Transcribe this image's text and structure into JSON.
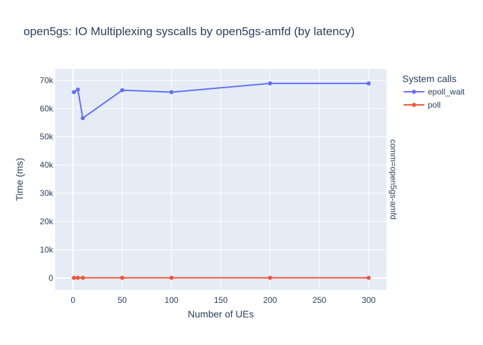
{
  "chart_data": {
    "type": "line",
    "title": "open5gs: IO Multiplexing syscalls by open5gs-amfd (by latency)",
    "xlabel": "Number of UEs",
    "ylabel": "Time (ms)",
    "legend_title": "System calls",
    "legend_position": "right",
    "facet_label": "comm=open5gs-amfd",
    "grid": true,
    "xlim": [
      -18,
      318
    ],
    "ylim": [
      -4200,
      74000
    ],
    "x_ticks": [
      0,
      50,
      100,
      150,
      200,
      250,
      300
    ],
    "x_tick_labels": [
      "0",
      "50",
      "100",
      "150",
      "200",
      "250",
      "300"
    ],
    "y_ticks": [
      0,
      10000,
      20000,
      30000,
      40000,
      50000,
      60000,
      70000
    ],
    "y_tick_labels": [
      "0",
      "10k",
      "20k",
      "30k",
      "40k",
      "50k",
      "60k",
      "70k"
    ],
    "x": [
      1,
      5,
      10,
      50,
      100,
      200,
      300
    ],
    "series": [
      {
        "name": "epoll_wait",
        "color": "#636efa",
        "values": [
          65800,
          66700,
          56600,
          66500,
          65800,
          68900,
          68900
        ]
      },
      {
        "name": "poll",
        "color": "#ef553b",
        "values": [
          50,
          50,
          50,
          50,
          50,
          50,
          50
        ]
      }
    ]
  }
}
